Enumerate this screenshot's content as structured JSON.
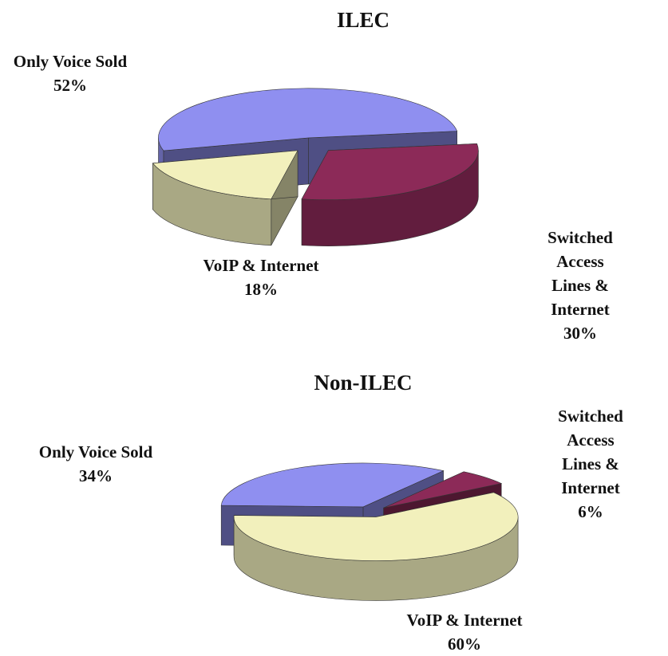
{
  "chart_data": [
    {
      "type": "pie",
      "title": "ILEC",
      "categories": [
        "Only Voice Sold",
        "Switched Access Lines & Internet",
        "VoIP & Internet"
      ],
      "values": [
        52,
        30,
        18
      ],
      "value_labels": [
        "52%",
        "30%",
        "18%"
      ],
      "colors": [
        "#8f8ff0",
        "#8c2a58",
        "#f2f0bc"
      ]
    },
    {
      "type": "pie",
      "title": "Non-ILEC",
      "categories": [
        "Only Voice Sold",
        "Switched Access Lines & Internet",
        "VoIP & Internet"
      ],
      "values": [
        34,
        6,
        60
      ],
      "value_labels": [
        "34%",
        "6%",
        "60%"
      ],
      "colors": [
        "#8f8ff0",
        "#8c2a58",
        "#f2f0bc"
      ]
    }
  ]
}
